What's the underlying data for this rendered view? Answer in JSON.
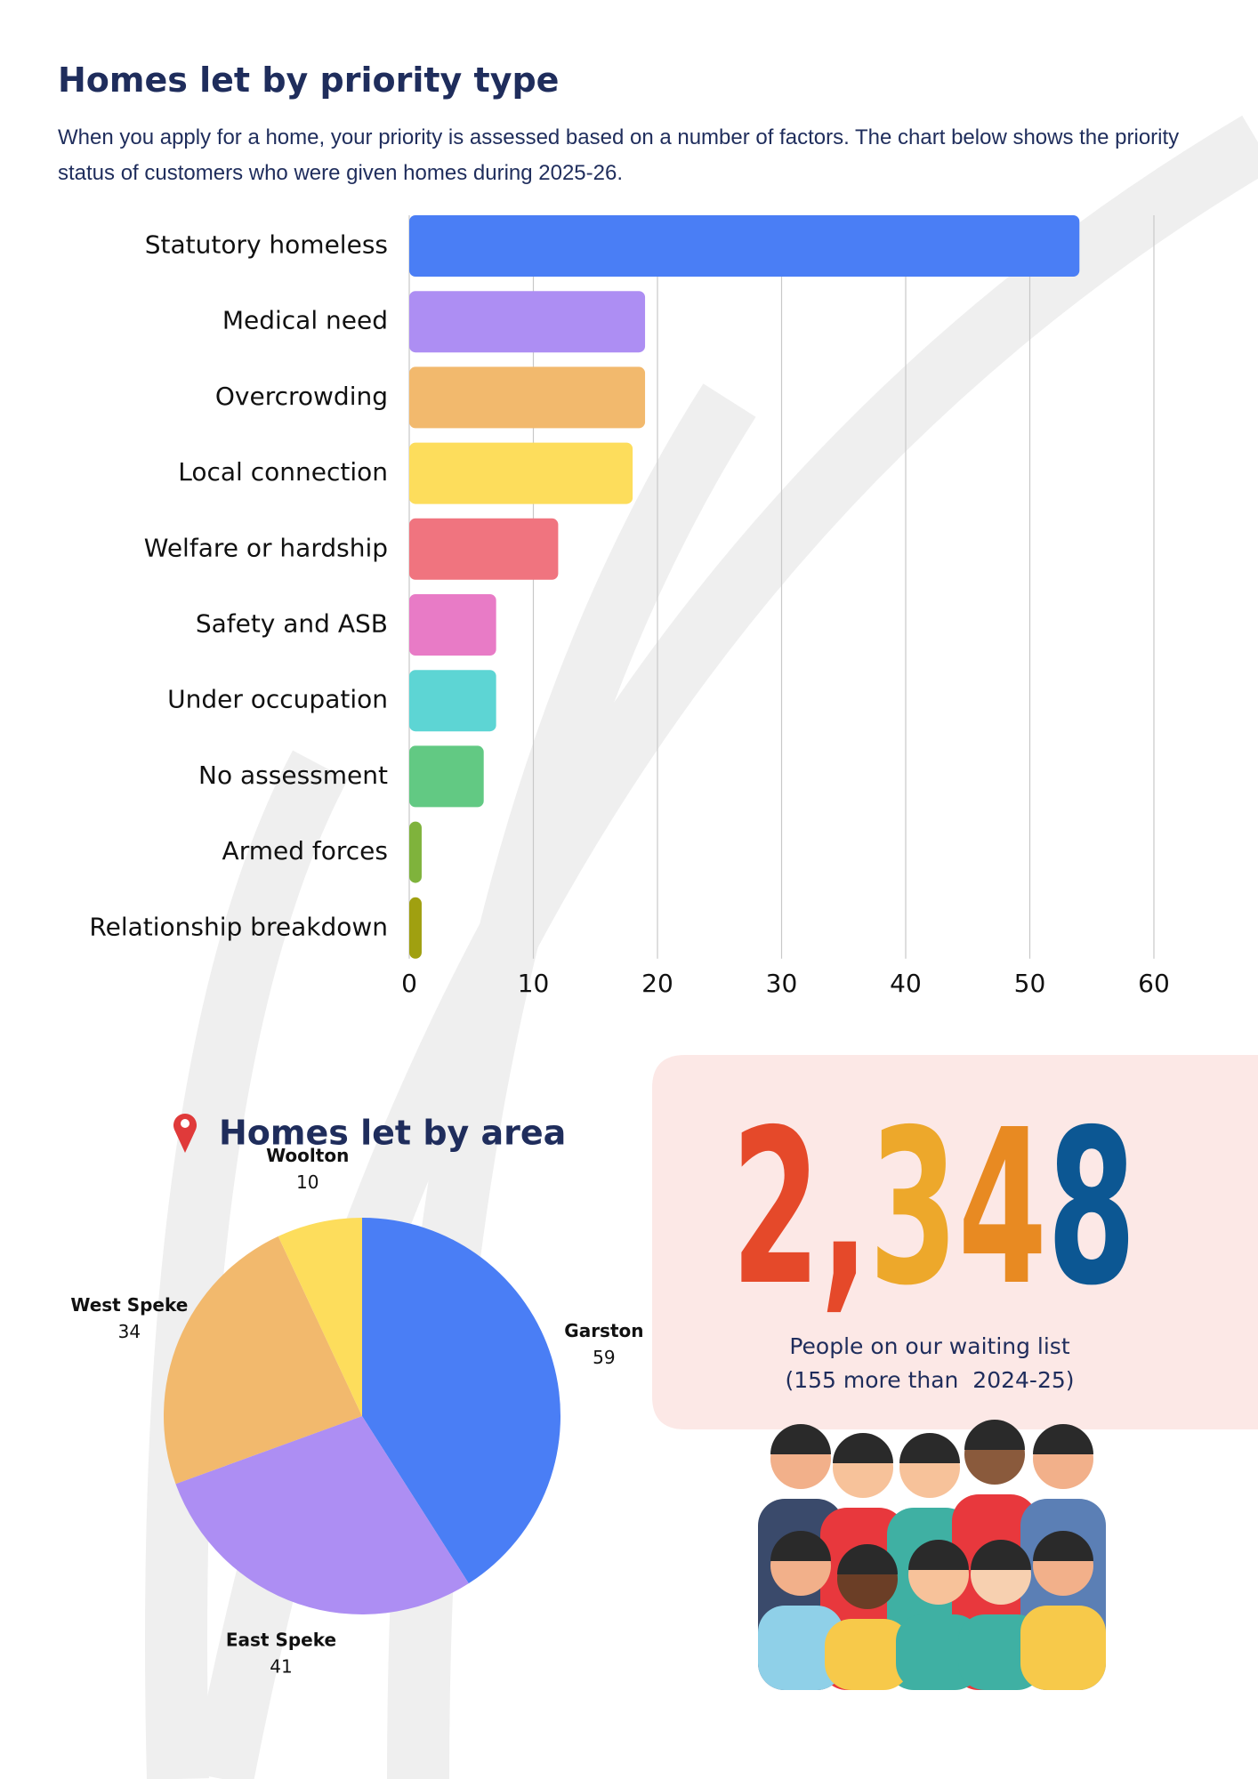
{
  "chart_data": [
    {
      "type": "bar",
      "orientation": "horizontal",
      "title": "Homes let by priority type",
      "subtitle": "When you apply for a home, your priority is assessed based on a number of factors. The chart below shows the priority status of customers who were given homes during 2025-26.",
      "categories": [
        "Statutory homeless",
        "Medical need",
        "Overcrowding",
        "Local connection",
        "Welfare or hardship",
        "Safety and ASB",
        "Under occupation",
        "No assessment",
        "Armed forces",
        "Relationship breakdown"
      ],
      "values": [
        54,
        19,
        19,
        18,
        12,
        7,
        7,
        6,
        1,
        1
      ],
      "colors": [
        "#4a7ef5",
        "#ad8ef3",
        "#f2b96d",
        "#fddd5c",
        "#f0747f",
        "#e87bc6",
        "#5dd5d4",
        "#62c983",
        "#7fb33c",
        "#a0a010"
      ],
      "xlim": [
        0,
        60
      ],
      "xticks": [
        0,
        10,
        20,
        30,
        40,
        50,
        60
      ],
      "grid": true
    },
    {
      "type": "pie",
      "title": "Homes let by area",
      "categories": [
        "Garston",
        "East Speke",
        "West Speke",
        "Woolton"
      ],
      "values": [
        59,
        41,
        34,
        10
      ],
      "colors": [
        "#4a7ef5",
        "#ad8ef3",
        "#f2b96d",
        "#fddd5c"
      ]
    }
  ],
  "stat": {
    "value": "2,348",
    "colors": [
      "#e5492a",
      "#e5492a",
      "#eda82b",
      "#e88a22",
      "#0c5793"
    ],
    "caption": [
      "People on our waiting list",
      "(155 more than  2024-25)"
    ]
  }
}
